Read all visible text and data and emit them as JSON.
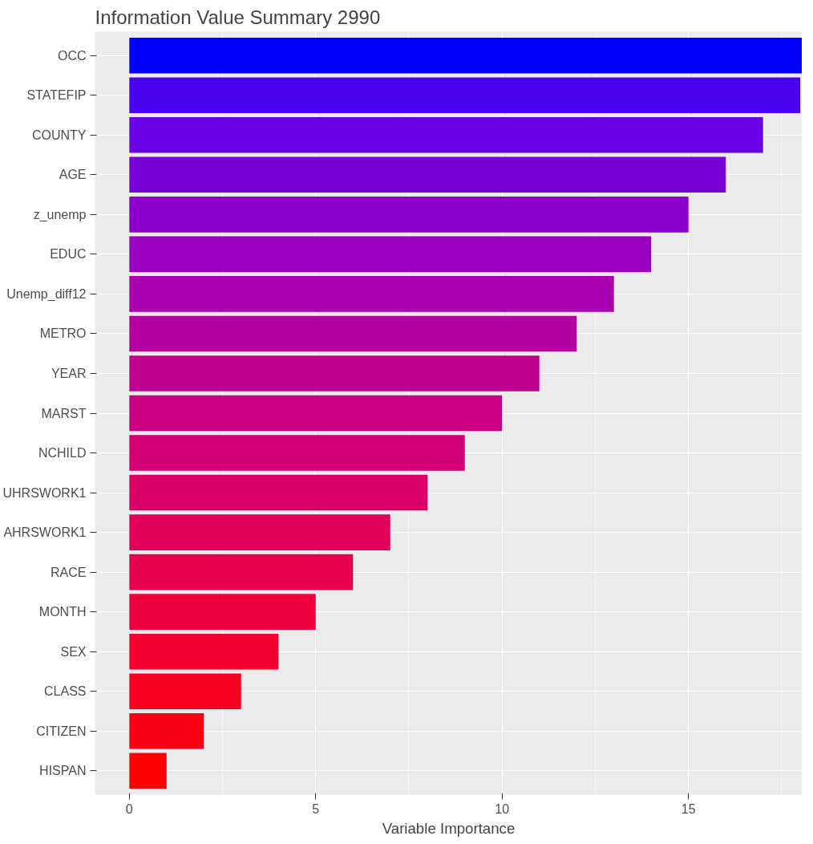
{
  "chart_data": {
    "type": "bar",
    "orientation": "horizontal",
    "title": "Information Value Summary 2990",
    "xlabel": "Variable Importance",
    "categories": [
      "OCC",
      "STATEFIP",
      "COUNTY",
      "AGE",
      "z_unemp",
      "EDUC",
      "Unemp_diff12",
      "METRO",
      "YEAR",
      "MARST",
      "NCHILD",
      "UHRSWORK1",
      "AHRSWORK1",
      "RACE",
      "MONTH",
      "SEX",
      "CLASS",
      "CITIZEN",
      "HISPAN"
    ],
    "values": [
      18.05,
      18,
      17,
      16,
      15,
      14,
      13,
      12,
      11,
      10,
      9,
      8,
      7,
      6,
      5,
      4,
      3,
      2,
      1
    ],
    "colors": [
      "#0000ff",
      "#4b00f0",
      "#6a00e5",
      "#7a00d8",
      "#8b00cc",
      "#9900c0",
      "#aa00b0",
      "#b400a0",
      "#c00090",
      "#cb0082",
      "#d30075",
      "#db0068",
      "#e2005a",
      "#e8004c",
      "#ee003e",
      "#f30030",
      "#f70022",
      "#fb0014",
      "#ff0000"
    ],
    "xlim": [
      -0.92,
      18.05
    ],
    "xticks": [
      0,
      5,
      10,
      15
    ],
    "grid": true
  }
}
